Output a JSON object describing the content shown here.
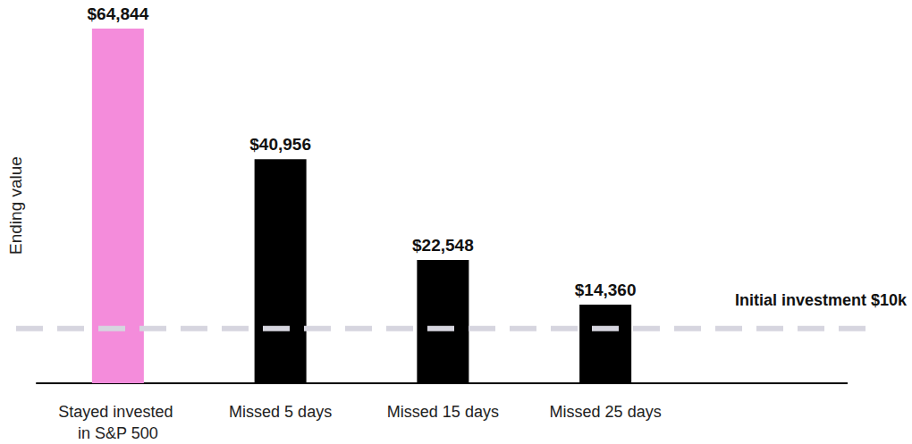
{
  "chart_data": {
    "type": "bar",
    "y_label": "Ending value",
    "categories": [
      "Stayed invested in S&P 500",
      "Missed 5 days",
      "Missed 15 days",
      "Missed 25 days"
    ],
    "values": [
      64844,
      40956,
      22548,
      14360
    ],
    "value_labels": [
      "$64,844",
      "$40,956",
      "$22,548",
      "$14,360"
    ],
    "colors": [
      "#f48cdb",
      "#000000",
      "#000000",
      "#000000"
    ],
    "ylim": [
      0,
      65000
    ],
    "yticks": [
      0,
      65000
    ],
    "grid": false,
    "data_labels": true,
    "tick_labels": "x",
    "annotations": [
      {
        "text": "Initial investment $10k",
        "y": 10000
      }
    ]
  }
}
